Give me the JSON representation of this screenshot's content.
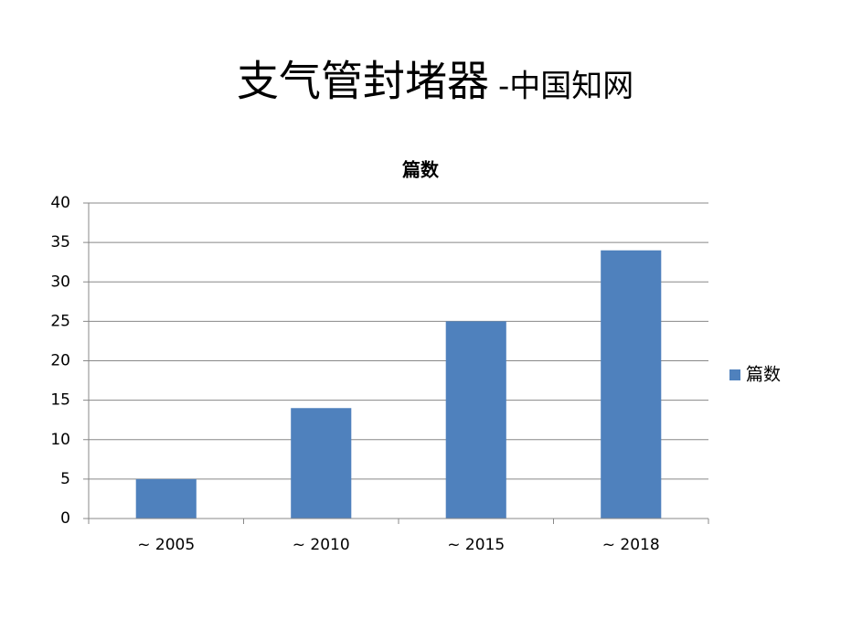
{
  "slide": {
    "title": "支气管封堵器",
    "source": "-中国知网"
  },
  "chart_data": {
    "type": "bar",
    "title": "篇数",
    "categories": [
      "~ 2005",
      "~ 2010",
      "~ 2015",
      "~ 2018"
    ],
    "series": [
      {
        "name": "篇数",
        "color": "#4f81bd",
        "values": [
          5,
          14,
          25,
          34
        ]
      }
    ],
    "ylim": [
      0,
      40
    ],
    "yticks": [
      0,
      5,
      10,
      15,
      20,
      25,
      30,
      35,
      40
    ],
    "grid": true,
    "legend": "right"
  }
}
